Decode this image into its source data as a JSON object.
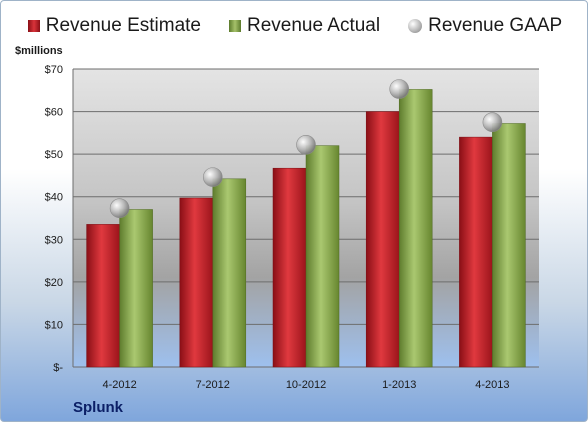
{
  "legend": {
    "estimate": "Revenue Estimate",
    "actual": "Revenue Actual",
    "gaap": "Revenue GAAP"
  },
  "unit_label": "$millions",
  "company": "Splunk",
  "colors": {
    "estimate": "#c8232b",
    "actual": "#8fb04f",
    "gaap": "#a8a8a8"
  },
  "chart_data": {
    "type": "bar",
    "categories": [
      "4-2012",
      "7-2012",
      "10-2012",
      "1-2013",
      "4-2013"
    ],
    "series": [
      {
        "name": "Revenue Estimate",
        "type": "bar",
        "values": [
          33.5,
          39.7,
          46.7,
          60.0,
          54.0
        ]
      },
      {
        "name": "Revenue Actual",
        "type": "bar",
        "values": [
          37.0,
          44.2,
          52.0,
          65.2,
          57.2
        ]
      },
      {
        "name": "Revenue GAAP",
        "type": "scatter",
        "values": [
          37.3,
          44.6,
          52.2,
          65.3,
          57.5
        ]
      }
    ],
    "ylabel": "$millions",
    "ylim": [
      0,
      70
    ],
    "y_ticks": [
      0,
      10,
      20,
      30,
      40,
      50,
      60,
      70
    ],
    "y_tick_labels": [
      "$-",
      "$10",
      "$20",
      "$30",
      "$40",
      "$50",
      "$60",
      "$70"
    ],
    "grid": true,
    "legend_position": "top"
  }
}
